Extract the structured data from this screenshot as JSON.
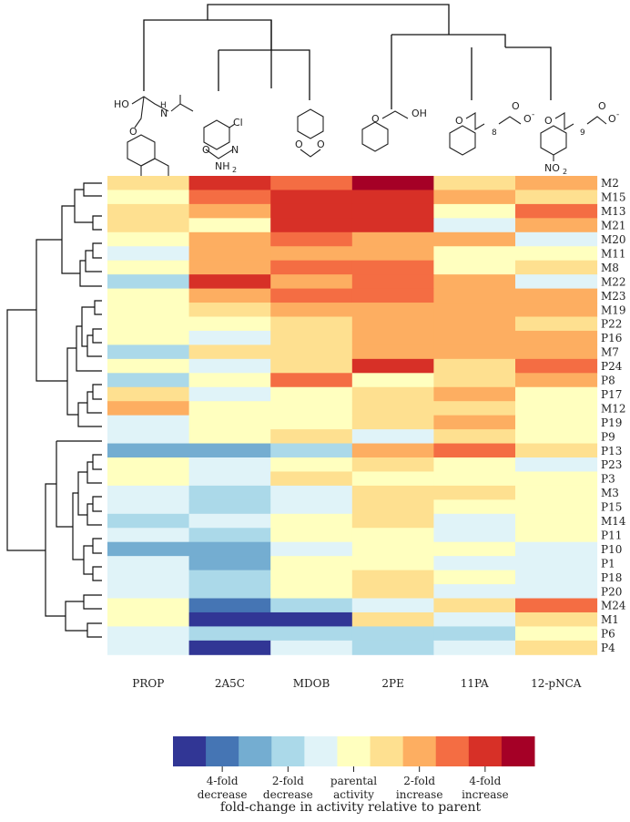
{
  "chart_data": {
    "type": "heatmap",
    "columns": [
      "PROP",
      "2A5C",
      "MDOB",
      "2PE",
      "11PA",
      "12-pNCA"
    ],
    "rows": [
      "M2",
      "M15",
      "M13",
      "M21",
      "M20",
      "M11",
      "M8",
      "M22",
      "M23",
      "M19",
      "P22",
      "P16",
      "M7",
      "P24",
      "P8",
      "P17",
      "M12",
      "P19",
      "P9",
      "P13",
      "P23",
      "P3",
      "M3",
      "P15",
      "M14",
      "P11",
      "P10",
      "P1",
      "P18",
      "P20",
      "M24",
      "M1",
      "P6",
      "P4"
    ],
    "values": [
      [
        1,
        4,
        3,
        5,
        1,
        2
      ],
      [
        0,
        3,
        4,
        4,
        2,
        1
      ],
      [
        1,
        2,
        4,
        4,
        0,
        3
      ],
      [
        1,
        0,
        4,
        4,
        -1,
        2
      ],
      [
        0,
        2,
        3,
        2,
        2,
        -1
      ],
      [
        -1,
        2,
        2,
        2,
        0,
        0
      ],
      [
        0,
        2,
        3,
        3,
        0,
        1
      ],
      [
        -2,
        4,
        2,
        3,
        2,
        -1
      ],
      [
        0,
        2,
        3,
        3,
        2,
        2
      ],
      [
        0,
        1,
        2,
        2,
        2,
        2
      ],
      [
        0,
        0,
        1,
        2,
        2,
        1
      ],
      [
        0,
        -1,
        1,
        2,
        2,
        2
      ],
      [
        -2,
        1,
        1,
        2,
        2,
        2
      ],
      [
        0,
        -1,
        1,
        4,
        1,
        3
      ],
      [
        -2,
        0,
        3,
        0,
        1,
        2
      ],
      [
        1,
        -1,
        0,
        1,
        2,
        0
      ],
      [
        2,
        0,
        0,
        1,
        1,
        0
      ],
      [
        -1,
        0,
        0,
        1,
        2,
        0
      ],
      [
        -1,
        0,
        1,
        -1,
        1,
        0
      ],
      [
        -3,
        -3,
        -2,
        2,
        3,
        1
      ],
      [
        0,
        -1,
        0,
        1,
        0,
        -1
      ],
      [
        0,
        -1,
        1,
        0,
        0,
        0
      ],
      [
        -1,
        -2,
        -1,
        1,
        1,
        0
      ],
      [
        -1,
        -2,
        -1,
        1,
        0,
        0
      ],
      [
        -2,
        -1,
        0,
        1,
        -1,
        0
      ],
      [
        -1,
        -2,
        0,
        0,
        -1,
        0
      ],
      [
        -3,
        -3,
        -1,
        0,
        0,
        -1
      ],
      [
        -1,
        -3,
        0,
        0,
        -1,
        -1
      ],
      [
        -1,
        -2,
        0,
        1,
        0,
        -1
      ],
      [
        -1,
        -2,
        0,
        1,
        -1,
        -1
      ],
      [
        0,
        -4,
        -2,
        -1,
        1,
        3
      ],
      [
        0,
        -5,
        -5,
        1,
        -1,
        1
      ],
      [
        -1,
        -2,
        -2,
        -2,
        -2,
        0
      ],
      [
        -1,
        -5,
        -1,
        -2,
        -1,
        1
      ]
    ],
    "color_scale": [
      "#313695",
      "#4575b4",
      "#74add1",
      "#abd9e9",
      "#e0f3f8",
      "#ffffbf",
      "#fee090",
      "#fdae61",
      "#f46d43",
      "#d73027",
      "#a50026"
    ],
    "color_scale_range": [
      -5,
      5
    ],
    "legend_labels": [
      {
        "line1": "4-fold",
        "line2": "decrease"
      },
      {
        "line1": "2-fold",
        "line2": "decrease"
      },
      {
        "line1": "parental",
        "line2": "activity"
      },
      {
        "line1": "2-fold",
        "line2": "increase"
      },
      {
        "line1": "4-fold",
        "line2": "increase"
      }
    ],
    "legend_title": "fold-change in activity relative to parent",
    "structure_labels": {
      "prop_ho": "HO",
      "prop_n": "N",
      "prop_h": "H",
      "prop_o": "O",
      "a5c_cl": "Cl",
      "a5c_o": "O",
      "a5c_n": "N",
      "a5c_nh2": "NH",
      "a5c_sub": "2",
      "mdob_o1": "O",
      "mdob_o2": "O",
      "pe_o": "O",
      "pe_oh": "OH",
      "pa_o": "O",
      "pa_n": "8",
      "pa_o2": "O",
      "pa_om": "O",
      "pa_minus": "-",
      "pnca_o": "O",
      "pnca_n": "9",
      "pnca_o2": "O",
      "pnca_om": "O",
      "pnca_minus": "-",
      "pnca_no": "NO",
      "pnca_sub": "2"
    }
  }
}
